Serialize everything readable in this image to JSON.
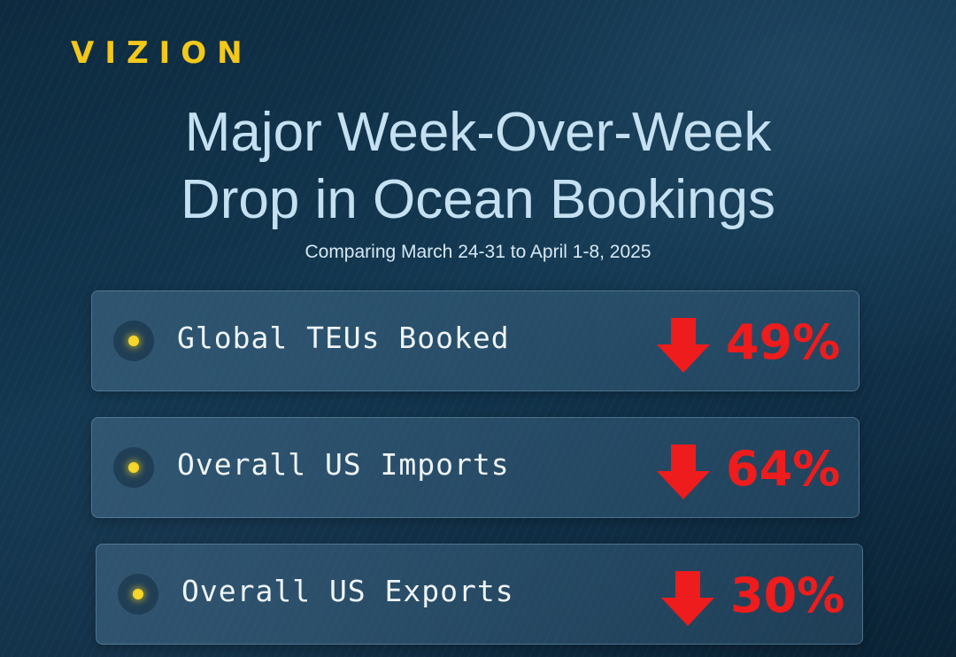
{
  "brand": {
    "logo_text": "VIZION",
    "color": "#f2c81a"
  },
  "headline": {
    "line1": "Major Week-Over-Week",
    "line2": "Drop in Ocean Bookings",
    "subtitle": "Comparing March 24-31 to April 1-8, 2025"
  },
  "metrics": [
    {
      "label": "Global TEUs Booked",
      "change": "49%",
      "direction": "down",
      "icon": "down-arrow-icon"
    },
    {
      "label": "Overall US Imports",
      "change": "64%",
      "direction": "down",
      "icon": "down-arrow-icon"
    },
    {
      "label": "Overall US Exports",
      "change": "30%",
      "direction": "down",
      "icon": "down-arrow-icon"
    }
  ],
  "colors": {
    "accent_yellow": "#f6d629",
    "negative_red": "#ee1c1c",
    "title_blue": "#c4e0f1"
  }
}
